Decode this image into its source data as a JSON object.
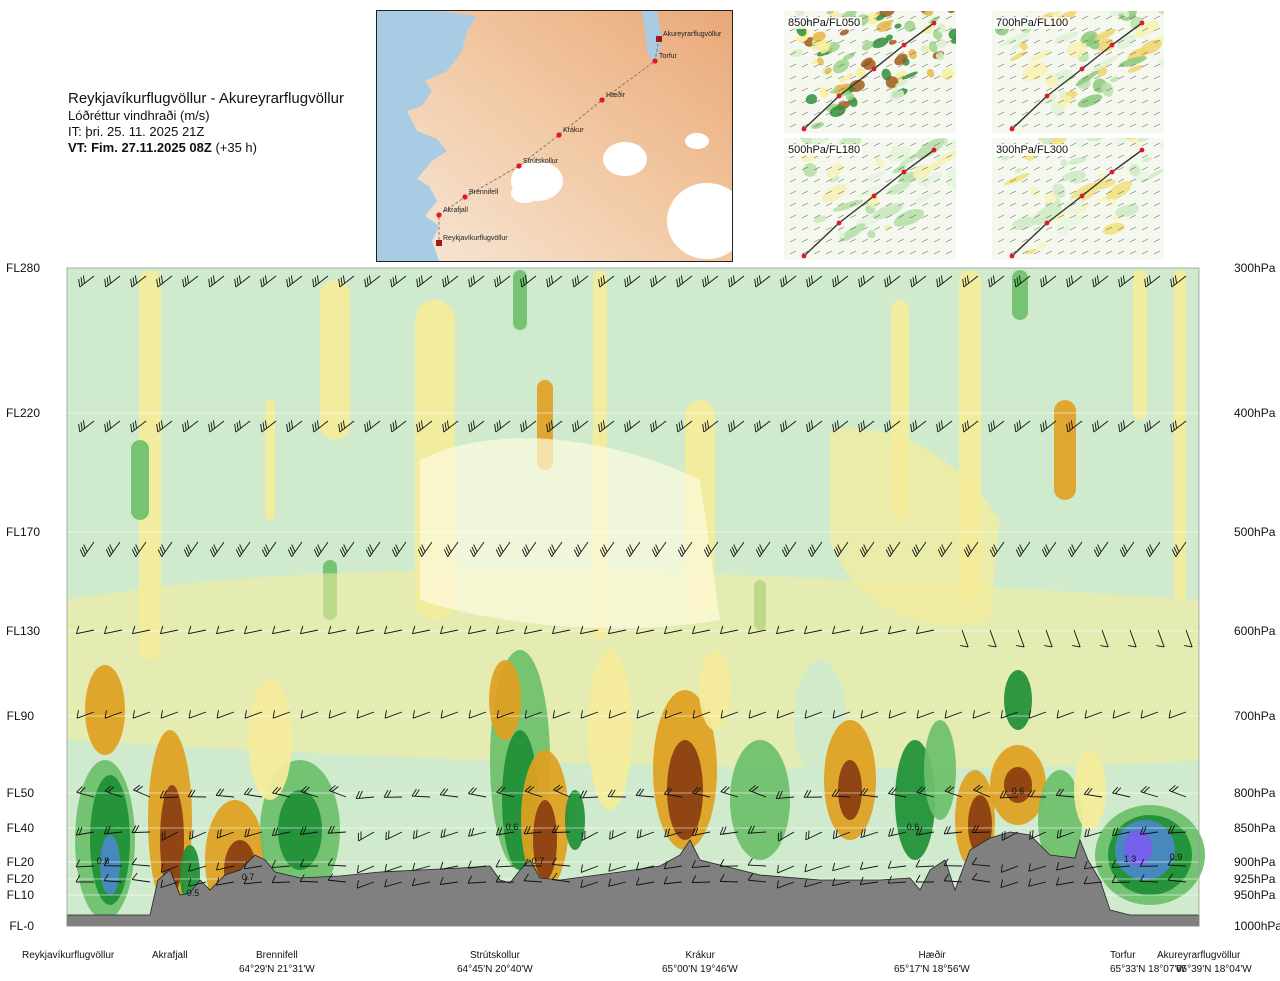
{
  "header": {
    "route": "Reykjavíkurflugvöllur - Akureyrarflugvöllur",
    "quantity": "Lóðréttur vindhraði (m/s)",
    "issue_time": "IT: þri. 25. 11. 2025 21Z",
    "valid_time_bold": "VT: Fim. 27.11.2025 08Z",
    "valid_offset": "(+35 h)"
  },
  "map": {
    "waypoints": [
      {
        "name": "Akureyrarflugvöllur"
      },
      {
        "name": "Torfur"
      },
      {
        "name": "Hæðir"
      },
      {
        "name": "Krákur"
      },
      {
        "name": "Strútskollur"
      },
      {
        "name": "Brennifell"
      },
      {
        "name": "Akrafjall"
      },
      {
        "name": "Reykjavíkurflugvöllur"
      }
    ]
  },
  "mini_maps": [
    {
      "label": "850hPa/FL050"
    },
    {
      "label": "700hPa/FL100"
    },
    {
      "label": "500hPa/FL180"
    },
    {
      "label": "300hPa/FL300"
    }
  ],
  "chart_data": {
    "type": "heatmap",
    "title": "Lóðréttur vindhraði (m/s)",
    "levels": [
      {
        "fl": "FL280",
        "hpa": "300hPa"
      },
      {
        "fl": "FL220",
        "hpa": "400hPa"
      },
      {
        "fl": "FL170",
        "hpa": "500hPa"
      },
      {
        "fl": "FL130",
        "hpa": "600hPa"
      },
      {
        "fl": "FL90",
        "hpa": "700hPa"
      },
      {
        "fl": "FL50",
        "hpa": "800hPa"
      },
      {
        "fl": "FL40",
        "hpa": "850hPa"
      },
      {
        "fl": "FL20",
        "hpa": "900hPa"
      },
      {
        "fl": "FL20",
        "hpa": "925hPa"
      },
      {
        "fl": "FL10",
        "hpa": "950hPa"
      },
      {
        "fl": "FL-0",
        "hpa": "1000hPa"
      }
    ],
    "locations": [
      {
        "name": "Reykjavíkurflugvöllur",
        "coord": ""
      },
      {
        "name": "Akrafjall",
        "coord": ""
      },
      {
        "name": "Brennifell",
        "coord": "64°29'N 21°31'W"
      },
      {
        "name": "Strútskollur",
        "coord": "64°45'N 20°40'W"
      },
      {
        "name": "Krákur",
        "coord": "65°00'N 19°46'W"
      },
      {
        "name": "Hæðir",
        "coord": "65°17'N 18°56'W"
      },
      {
        "name": "Torfur",
        "coord": "65°33'N 18°07'W"
      },
      {
        "name": "Akureyrarflugvöllur",
        "coord": "65°39'N 18°04'W"
      }
    ],
    "value_labels": [
      "0.8",
      "0.5",
      "0.7",
      "0.6",
      "0.7",
      "0.6",
      "0.6",
      "1.3",
      "0.9"
    ],
    "colors": {
      "down_strong": "#8a3d10",
      "down_medium": "#e0a020",
      "down_weak": "#f5ec9a",
      "neutral": "#fdfbe0",
      "up_weak": "#cfeacc",
      "up_medium": "#6cbf6a",
      "up_strong": "#1e8f35",
      "up_very_strong": "#4a88c8",
      "terrain": "#808080"
    }
  }
}
